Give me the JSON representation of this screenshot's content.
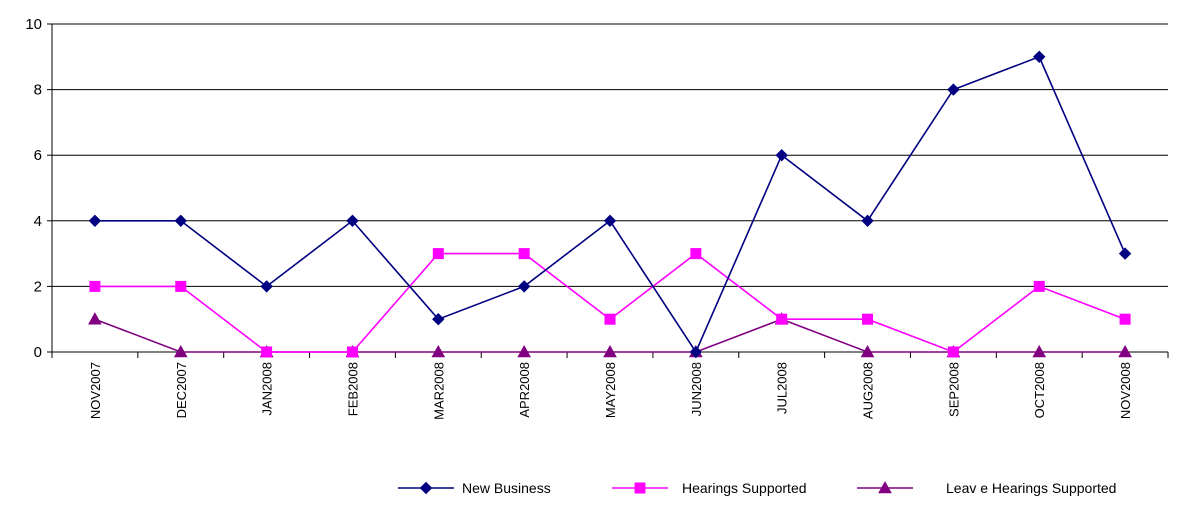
{
  "chart_data": {
    "type": "line",
    "title": "",
    "xlabel": "",
    "ylabel": "",
    "categories": [
      "NOV2007",
      "DEC2007",
      "JAN2008",
      "FEB2008",
      "MAR2008",
      "APR2008",
      "MAY2008",
      "JUN2008",
      "JUL2008",
      "AUG2008",
      "SEP2008",
      "OCT2008",
      "NOV2008"
    ],
    "ylim": [
      0,
      10
    ],
    "yticks": [
      0,
      2,
      4,
      6,
      8,
      10
    ],
    "y_tick_labels": [
      "0",
      "2",
      "4",
      "6",
      "8",
      "10"
    ],
    "grid": "horizontal",
    "legend_position": "bottom",
    "series": [
      {
        "name": "New Business",
        "values": [
          4,
          4,
          2,
          4,
          1,
          2,
          4,
          0,
          6,
          4,
          8,
          9,
          3
        ],
        "color": "#000080",
        "marker": "diamond"
      },
      {
        "name": "Hearings Supported",
        "values": [
          2,
          2,
          0,
          0,
          3,
          3,
          1,
          3,
          1,
          1,
          0,
          2,
          1
        ],
        "color": "#FF00FF",
        "marker": "square"
      },
      {
        "name": "Leav e Hearings Supported",
        "values": [
          1,
          0,
          0,
          0,
          0,
          0,
          0,
          0,
          1,
          0,
          0,
          0,
          0
        ],
        "color": "#800080",
        "marker": "triangle"
      }
    ]
  }
}
